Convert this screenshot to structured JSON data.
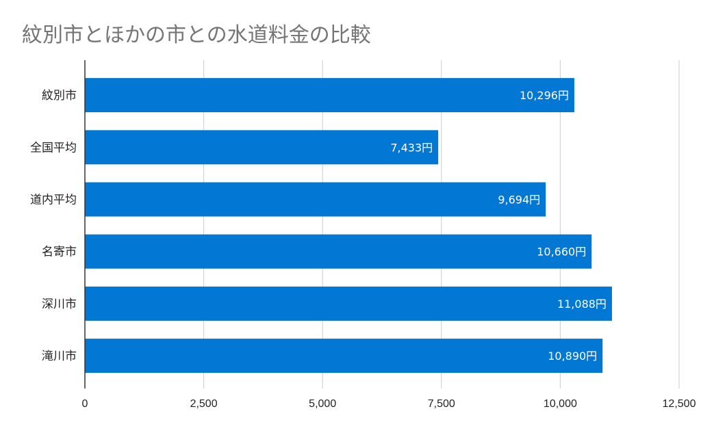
{
  "chart_data": {
    "type": "bar",
    "orientation": "horizontal",
    "title": "紋別市とほかの市との水道料金の比較",
    "xlabel": "",
    "ylabel": "",
    "categories": [
      "紋別市",
      "全国平均",
      "道内平均",
      "名寄市",
      "深川市",
      "滝川市"
    ],
    "values": [
      10296,
      7433,
      9694,
      10660,
      11088,
      10890
    ],
    "data_labels": [
      "10,296円",
      "7,433円",
      "9,694円",
      "10,660円",
      "11,088円",
      "10,890円"
    ],
    "xlim": [
      0,
      12500
    ],
    "ticks": [
      0,
      2500,
      5000,
      7500,
      10000,
      12500
    ],
    "tick_labels": [
      "0",
      "2,500",
      "5,000",
      "7,500",
      "10,000",
      "12,500"
    ],
    "grid": true,
    "legend": "none",
    "colors": {
      "bar": "#0277d4",
      "grid": "#cccccc",
      "axis": "#333333",
      "title": "#757575"
    }
  }
}
